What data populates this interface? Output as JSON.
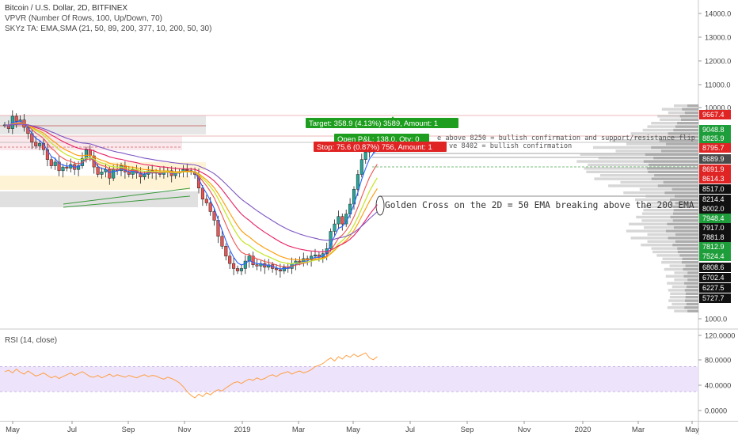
{
  "legend": {
    "title": "Bitcoin / U.S. Dollar, 2D, BITFINEX",
    "vpvr": "VPVR (Number Of Rows, 100, Up/Down, 70)",
    "skyz": "SKYz TA: EMA,SMA (21, 50, 89, 200, 377, 10, 200, 50, 30)",
    "rsi": "RSI (14, close)"
  },
  "trade": {
    "target": "Target: 358.9 (4.13%) 3589, Amount: 1",
    "open_pl": "Open P&L: 138.0, Qty: 0",
    "stop": "Stop: 75.6 (0.87%) 756, Amount: 1"
  },
  "annotations": {
    "note_8250": "e above 8250 = bullish confirmation and support/resistance flip",
    "note_8402": "ve 8402 = bullish confirmation",
    "golden_cross": "Golden Cross on the 2D = 50 EMA breaking above the 200 EMA"
  },
  "colors": {
    "up": "#26a69a",
    "down": "#ef5350",
    "target": "#1e9e1e",
    "stop": "#e02424",
    "ema21": "#2962ff",
    "ema50": "#ff9800",
    "ema89": "#e91e63",
    "ema200": "#7e57c2",
    "sma": "#c8e632",
    "rsi": "#ff9f43",
    "rsi_band": "#ede3fa"
  },
  "chart_data": {
    "type": "line",
    "title": "Bitcoin / U.S. Dollar, 2D, BITFINEX",
    "x_ticks": [
      "May",
      "Jul",
      "Sep",
      "Nov",
      "2019",
      "Mar",
      "May",
      "Jul",
      "Sep",
      "Nov",
      "2020",
      "Mar",
      "May"
    ],
    "price_ticks": [
      "14000.0",
      "13000.0",
      "12000.0",
      "11000.0",
      "10000.0",
      "1000.0"
    ],
    "price_labels": [
      {
        "text": "9667.4",
        "kind": "red"
      },
      {
        "text": "9048.8",
        "kind": "green"
      },
      {
        "text": "8825.9",
        "kind": "green"
      },
      {
        "text": "8795.7",
        "kind": "red"
      },
      {
        "text": "8689.9",
        "kind": "dark"
      },
      {
        "text": "8691.9",
        "kind": "red"
      },
      {
        "text": "8614.3",
        "kind": "red"
      },
      {
        "text": "8517.0",
        "kind": "black"
      },
      {
        "text": "8214.4",
        "kind": "black"
      },
      {
        "text": "8002.0",
        "kind": "black"
      },
      {
        "text": "7948.4",
        "kind": "green"
      },
      {
        "text": "7917.0",
        "kind": "black"
      },
      {
        "text": "7881.8",
        "kind": "black"
      },
      {
        "text": "7812.9",
        "kind": "green"
      },
      {
        "text": "7524.4",
        "kind": "green"
      },
      {
        "text": "6808.6",
        "kind": "black"
      },
      {
        "text": "6702.4",
        "kind": "black"
      },
      {
        "text": "6227.5",
        "kind": "black"
      },
      {
        "text": "5727.7",
        "kind": "black"
      }
    ],
    "rsi_ticks": [
      "120.0000",
      "80.0000",
      "40.0000",
      "0.0000"
    ],
    "price_series": [
      9300,
      9150,
      9650,
      9450,
      9500,
      9200,
      8950,
      8600,
      8450,
      8550,
      8300,
      7900,
      7650,
      7800,
      7450,
      7600,
      7550,
      7700,
      7500,
      7650,
      7950,
      8300,
      8050,
      7600,
      7300,
      7400,
      7500,
      7150,
      7500,
      7450,
      7650,
      7400,
      7300,
      7500,
      7350,
      7200,
      7300,
      7450,
      7350,
      7400,
      7300,
      7400,
      7450,
      7250,
      7350,
      7400,
      7500,
      7450,
      7400,
      7300,
      6750,
      6300,
      6150,
      5800,
      5450,
      4800,
      4400,
      4000,
      3700,
      3500,
      3400,
      3500,
      3800,
      4000,
      3650,
      3600,
      3700,
      3550,
      3650,
      3500,
      3450,
      3400,
      3550,
      3500,
      3700,
      3800,
      3750,
      3900,
      3850,
      4000,
      4050,
      3950,
      4100,
      4300,
      5000,
      5300,
      5600,
      5300,
      5700,
      6100,
      6700,
      7300,
      7900,
      8200,
      8500,
      8450,
      8600
    ],
    "rsi_series": [
      62,
      64,
      60,
      66,
      61,
      58,
      63,
      59,
      55,
      57,
      60,
      56,
      52,
      55,
      51,
      54,
      57,
      60,
      56,
      59,
      62,
      58,
      54,
      53,
      56,
      52,
      55,
      58,
      54,
      57,
      55,
      53,
      56,
      54,
      52,
      55,
      57,
      54,
      56,
      55,
      52,
      50,
      53,
      51,
      48,
      44,
      38,
      30,
      24,
      20,
      26,
      22,
      28,
      25,
      30,
      33,
      31,
      36,
      40,
      44,
      46,
      43,
      47,
      50,
      48,
      52,
      49,
      51,
      55,
      57,
      54,
      58,
      60,
      62,
      58,
      61,
      63,
      60,
      62,
      65,
      70,
      72,
      75,
      80,
      84,
      79,
      86,
      82,
      88,
      85,
      90,
      86,
      89,
      92,
      84,
      81,
      86
    ]
  }
}
